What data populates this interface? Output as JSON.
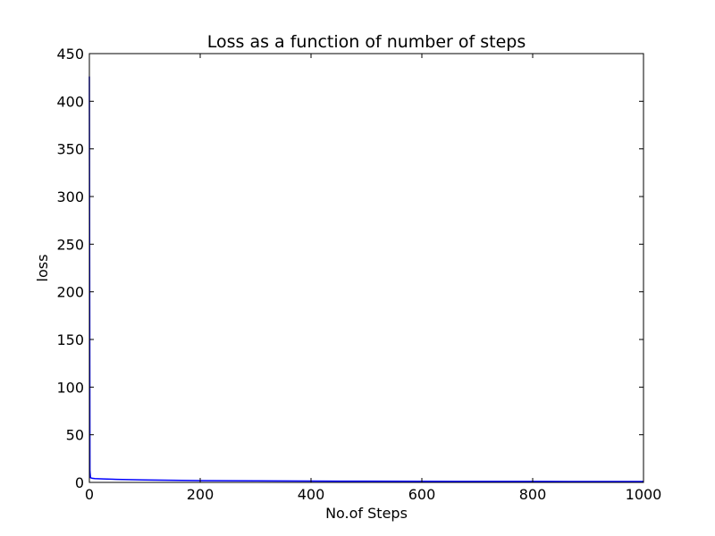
{
  "chart_data": {
    "type": "line",
    "title": "Loss as a function of number of steps",
    "xlabel": "No.of Steps",
    "ylabel": "loss",
    "xlim": [
      0,
      1000
    ],
    "ylim": [
      0,
      450
    ],
    "xticks": [
      "0",
      "200",
      "400",
      "600",
      "800",
      "1000"
    ],
    "yticks": [
      "0",
      "50",
      "100",
      "150",
      "200",
      "250",
      "300",
      "350",
      "400",
      "450"
    ],
    "grid": false,
    "legend": "none",
    "colors": {
      "line": "#0000ff",
      "axes": "#000000",
      "background": "#ffffff"
    },
    "series": [
      {
        "x": [
          0,
          1,
          2,
          5,
          10,
          25,
          50,
          100,
          150,
          200,
          300,
          400,
          500,
          600,
          700,
          800,
          900,
          1000
        ],
        "y": [
          426,
          12,
          5,
          4.3,
          4,
          3.6,
          3.2,
          2.6,
          2.2,
          1.9,
          1.6,
          1.4,
          1.25,
          1.15,
          1.05,
          1,
          0.95,
          0.9
        ]
      }
    ]
  }
}
